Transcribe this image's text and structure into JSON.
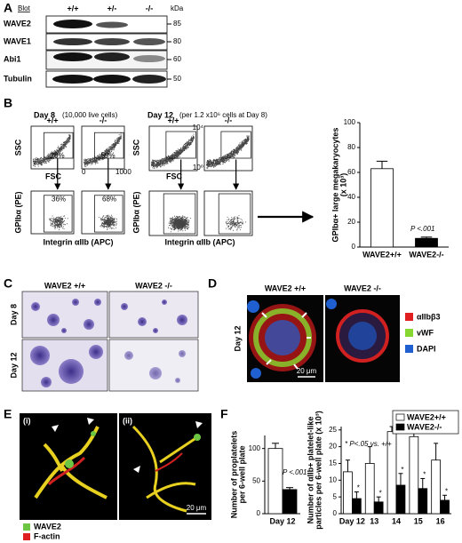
{
  "panel_a": {
    "label": "A",
    "header": "Blot",
    "genotypes": [
      "+/+",
      "+/-",
      "-/-"
    ],
    "unit": "kDa",
    "rows": [
      {
        "protein": "WAVE2",
        "kda": 85
      },
      {
        "protein": "WAVE1",
        "kda": 80
      },
      {
        "protein": "Abi1",
        "kda": 60
      },
      {
        "protein": "Tubulin",
        "kda": 50
      }
    ]
  },
  "panel_b": {
    "label": "B",
    "day8": {
      "title": "Day 8",
      "note": "(10,000 live cells)"
    },
    "day12": {
      "title": "Day 12",
      "note": "(per 1.2 x10⁶ cells at Day 8)"
    },
    "genotypes": [
      "+/+",
      "-/-"
    ],
    "ssc_label": "SSC",
    "fsc_label": "FSC",
    "gpib_label": "GPIbα (PE)",
    "integrin_label": "Integrin αIIb (APC)",
    "day8_gates": [
      "28%",
      "59%",
      "36%",
      "68%"
    ],
    "linear_ticks": [
      "0",
      "1000"
    ],
    "log_ticks": [
      "10⁰",
      "10⁴"
    ]
  },
  "panel_c": {
    "label": "C",
    "columns": [
      "WAVE2 +/+",
      "WAVE2 -/-"
    ],
    "rows": [
      "Day 8",
      "Day 12"
    ]
  },
  "panel_d": {
    "label": "D",
    "columns": [
      "WAVE2 +/+",
      "WAVE2 -/-"
    ],
    "row": "Day 12",
    "scale_bar": "20 μm",
    "legend": [
      {
        "name": "αIIbβ3",
        "color": "#e02020"
      },
      {
        "name": "vWF",
        "color": "#86d830"
      },
      {
        "name": "DAPI",
        "color": "#1f5fd0"
      }
    ]
  },
  "panel_e": {
    "label": "E",
    "images": [
      "(i)",
      "(ii)"
    ],
    "scale_bar": "20 μm",
    "legend": [
      {
        "name": "WAVE2",
        "color": "#6cc644"
      },
      {
        "name": "F-actin",
        "color": "#e02020"
      }
    ]
  },
  "panel_f": {
    "label": "F"
  },
  "chart_data": [
    {
      "type": "bar",
      "categories": [
        "WAVE2+/+",
        "WAVE2-/-"
      ],
      "values": [
        63,
        7
      ],
      "errors": [
        6,
        1
      ],
      "colors": [
        "#ffffff",
        "#000000"
      ],
      "ylim": [
        0,
        100
      ],
      "yticks": [
        0,
        20,
        40,
        60,
        80,
        100
      ],
      "y_label": [
        "GPIbα+ large megakaryocytes",
        "(x 10³)"
      ],
      "annotation": "P <.001"
    },
    {
      "type": "bar",
      "categories": [
        "Day 12"
      ],
      "series": [
        {
          "color": "#ffffff",
          "values": [
            100
          ],
          "errors": [
            8
          ]
        },
        {
          "color": "#000000",
          "values": [
            37
          ],
          "errors": [
            3
          ]
        }
      ],
      "ylim": [
        0,
        120
      ],
      "yticks": [
        0,
        50,
        100
      ],
      "y_label": [
        "Number of proplatelets",
        "per 6-well plate"
      ],
      "annotation": "P <.001"
    },
    {
      "type": "bar",
      "categories": [
        "Day 12",
        "13",
        "14",
        "15",
        "16"
      ],
      "series": [
        {
          "name": "WAVE2+/+",
          "color": "#ffffff",
          "values": [
            12.5,
            15,
            24.5,
            23,
            16
          ],
          "errors": [
            3.5,
            5,
            1.5,
            2,
            5
          ]
        },
        {
          "name": "WAVE2-/-",
          "color": "#000000",
          "values": [
            4.5,
            3.5,
            8.5,
            7.5,
            4
          ],
          "errors": [
            2,
            1.5,
            3.5,
            3,
            1.5
          ]
        }
      ],
      "ylim": [
        0,
        26
      ],
      "yticks": [
        0,
        5,
        10,
        15,
        20,
        25
      ],
      "legend": "upper right",
      "y_label": [
        "Number of αIIb+ platelet-like",
        "particles per 6-well plate (x 10³)"
      ],
      "asterisk": "*",
      "annotation": "* P<.05  vs. +/+"
    }
  ]
}
